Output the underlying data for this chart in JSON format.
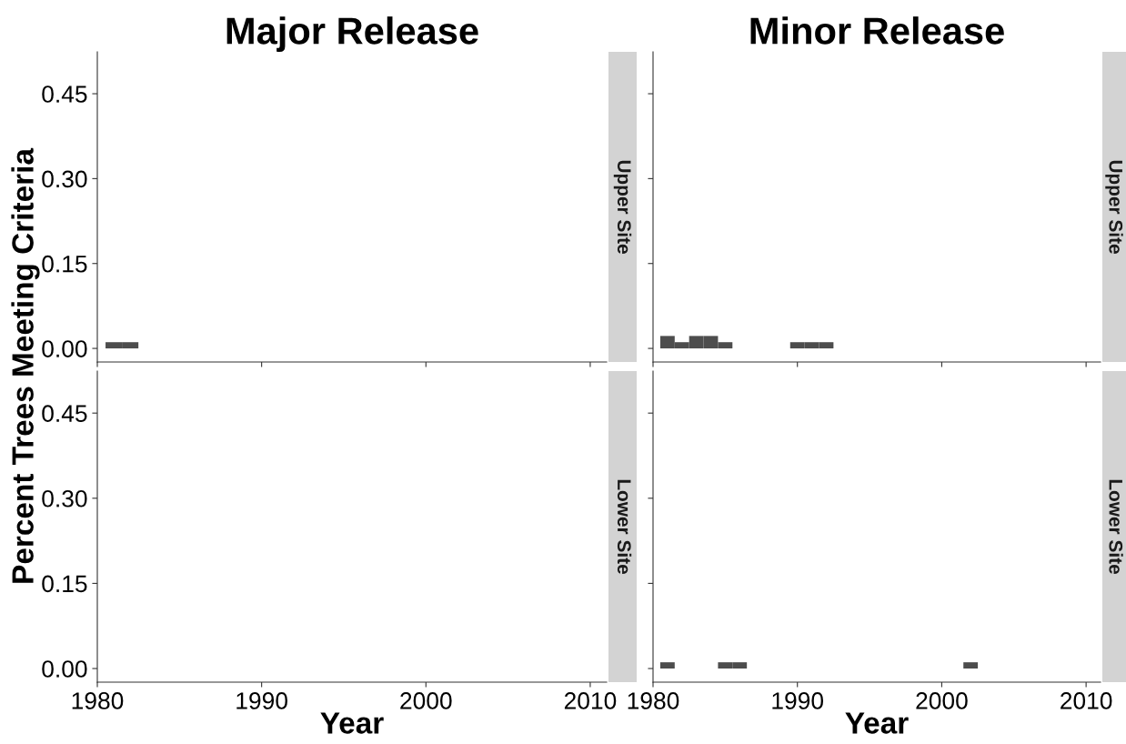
{
  "chart_data": [
    {
      "type": "bar",
      "title": "Major Release",
      "ylabel": "Percent Trees Meeting Criteria",
      "annotations": [
        "Upper Site"
      ],
      "x": [
        1981,
        1982
      ],
      "series": [
        {
          "color": "#4d4d4d",
          "values": [
            0.011,
            0.011
          ]
        }
      ],
      "xlim": [
        1980,
        2011
      ],
      "xticks": [
        1980,
        1990,
        2000,
        2010
      ],
      "ylim": [
        -0.024,
        0.524
      ],
      "yticks": [
        {
          "value": 0,
          "label": "0.00"
        },
        {
          "value": 0.15,
          "label": "0.15"
        },
        {
          "value": 0.3,
          "label": "0.30"
        },
        {
          "value": 0.45,
          "label": "0.45"
        }
      ],
      "tick_labels": "y",
      "grid": false
    },
    {
      "type": "bar",
      "title": "Minor Release",
      "annotations": [
        "Upper Site"
      ],
      "x": [
        1981,
        1982,
        1983,
        1984,
        1985,
        1990,
        1991,
        1992
      ],
      "series": [
        {
          "color": "#4d4d4d",
          "values": [
            0.022,
            0.011,
            0.022,
            0.022,
            0.011,
            0.011,
            0.011,
            0.011
          ]
        }
      ],
      "xlim": [
        1980,
        2011
      ],
      "xticks": [
        1980,
        1990,
        2000,
        2010
      ],
      "ylim": [
        -0.024,
        0.524
      ],
      "yticks": [
        0,
        0.15,
        0.3,
        0.45
      ],
      "tick_labels": false,
      "grid": false
    },
    {
      "type": "bar",
      "xlabel": "Year",
      "annotations": [
        "Lower Site"
      ],
      "xlim": [
        1980,
        2011
      ],
      "xticks": [
        1980,
        1990,
        2000,
        2010
      ],
      "ylim": [
        -0.024,
        0.524
      ],
      "yticks": [
        {
          "value": 0,
          "label": "0.00"
        },
        {
          "value": 0.15,
          "label": "0.15"
        },
        {
          "value": 0.3,
          "label": "0.30"
        },
        {
          "value": 0.45,
          "label": "0.45"
        }
      ],
      "grid": false
    },
    {
      "type": "bar",
      "xlabel": "Year",
      "annotations": [
        "Lower Site"
      ],
      "x": [
        1981,
        1985,
        1986,
        2002
      ],
      "series": [
        {
          "color": "#4d4d4d",
          "values": [
            0.011,
            0.011,
            0.011,
            0.011
          ]
        }
      ],
      "xlim": [
        1980,
        2011
      ],
      "xticks": [
        1980,
        1990,
        2000,
        2010
      ],
      "ylim": [
        -0.024,
        0.524
      ],
      "yticks": [
        0,
        0.15,
        0.3,
        0.45
      ],
      "tick_labels": "x",
      "grid": false
    }
  ]
}
